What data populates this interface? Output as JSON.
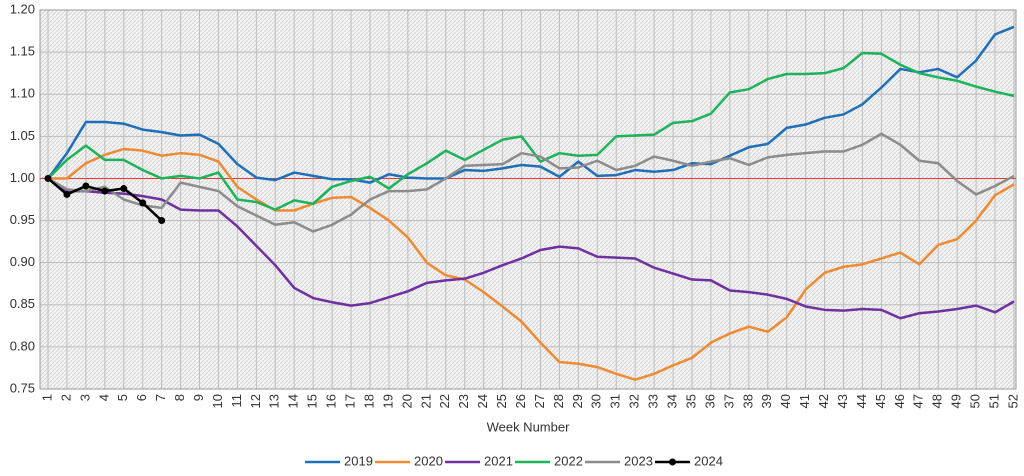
{
  "chart_data": {
    "type": "line",
    "x_label": "Week Number",
    "categories": [
      1,
      2,
      3,
      4,
      5,
      6,
      7,
      8,
      9,
      10,
      11,
      12,
      13,
      14,
      15,
      16,
      17,
      18,
      19,
      20,
      21,
      22,
      23,
      24,
      25,
      26,
      27,
      28,
      29,
      30,
      31,
      32,
      33,
      34,
      35,
      36,
      37,
      38,
      39,
      40,
      41,
      42,
      43,
      44,
      45,
      46,
      47,
      48,
      49,
      50,
      51,
      52
    ],
    "ylim": [
      0.75,
      1.2
    ],
    "yticks": [
      {
        "value": 0.75,
        "label": "0.75"
      },
      {
        "value": 0.8,
        "label": "0.80"
      },
      {
        "value": 0.85,
        "label": "0.85"
      },
      {
        "value": 0.9,
        "label": "0.90"
      },
      {
        "value": 0.95,
        "label": "0.95"
      },
      {
        "value": 1.0,
        "label": "1.00"
      },
      {
        "value": 1.05,
        "label": "1.05"
      },
      {
        "value": 1.1,
        "label": "1.10"
      },
      {
        "value": 1.15,
        "label": "1.15"
      },
      {
        "value": 1.2,
        "label": "1.20"
      }
    ],
    "grid": true,
    "reference_line": {
      "value": 1.0,
      "color": "#e8382f"
    },
    "legend": "bottom",
    "series": [
      {
        "name": "2019",
        "color": "#1f6fb8",
        "values": [
          1.0,
          1.03,
          1.067,
          1.067,
          1.065,
          1.058,
          1.055,
          1.051,
          1.052,
          1.041,
          1.017,
          1.001,
          0.998,
          1.007,
          1.003,
          0.999,
          0.999,
          0.995,
          1.005,
          1.001,
          1.0,
          1.0,
          1.01,
          1.009,
          1.012,
          1.016,
          1.014,
          1.002,
          1.02,
          1.003,
          1.004,
          1.01,
          1.008,
          1.01,
          1.018,
          1.017,
          1.027,
          1.037,
          1.041,
          1.06,
          1.064,
          1.072,
          1.076,
          1.088,
          1.108,
          1.13,
          1.126,
          1.13,
          1.12,
          1.14,
          1.171,
          1.18
        ]
      },
      {
        "name": "2020",
        "color": "#ee8a32",
        "values": [
          1.0,
          1.0,
          1.018,
          1.028,
          1.035,
          1.033,
          1.027,
          1.03,
          1.028,
          1.02,
          0.99,
          0.975,
          0.962,
          0.962,
          0.97,
          0.977,
          0.978,
          0.965,
          0.95,
          0.93,
          0.9,
          0.885,
          0.88,
          0.865,
          0.848,
          0.83,
          0.805,
          0.782,
          0.78,
          0.776,
          0.768,
          0.761,
          0.768,
          0.778,
          0.787,
          0.805,
          0.816,
          0.824,
          0.818,
          0.835,
          0.868,
          0.888,
          0.895,
          0.898,
          0.905,
          0.912,
          0.898,
          0.921,
          0.928,
          0.95,
          0.98,
          0.993
        ]
      },
      {
        "name": "2021",
        "color": "#7030a0",
        "values": [
          1.0,
          0.985,
          0.985,
          0.983,
          0.982,
          0.979,
          0.975,
          0.963,
          0.962,
          0.962,
          0.943,
          0.92,
          0.897,
          0.87,
          0.858,
          0.853,
          0.849,
          0.852,
          0.859,
          0.866,
          0.876,
          0.879,
          0.881,
          0.888,
          0.897,
          0.905,
          0.915,
          0.919,
          0.917,
          0.907,
          0.906,
          0.905,
          0.894,
          0.887,
          0.88,
          0.879,
          0.867,
          0.865,
          0.862,
          0.857,
          0.848,
          0.844,
          0.843,
          0.845,
          0.844,
          0.834,
          0.84,
          0.842,
          0.845,
          0.849,
          0.841,
          0.854
        ]
      },
      {
        "name": "2022",
        "color": "#1db35a",
        "values": [
          1.0,
          1.022,
          1.039,
          1.022,
          1.022,
          1.01,
          1.0,
          1.003,
          1.0,
          1.007,
          0.975,
          0.972,
          0.963,
          0.974,
          0.97,
          0.99,
          0.997,
          1.002,
          0.988,
          1.005,
          1.018,
          1.033,
          1.022,
          1.034,
          1.046,
          1.05,
          1.02,
          1.03,
          1.027,
          1.028,
          1.05,
          1.051,
          1.052,
          1.066,
          1.068,
          1.077,
          1.102,
          1.106,
          1.118,
          1.124,
          1.124,
          1.125,
          1.131,
          1.149,
          1.148,
          1.135,
          1.125,
          1.12,
          1.116,
          1.109,
          1.103,
          1.098
        ]
      },
      {
        "name": "2023",
        "color": "#8c8c8c",
        "values": [
          1.0,
          0.987,
          0.985,
          0.99,
          0.975,
          0.968,
          0.965,
          0.995,
          0.99,
          0.985,
          0.967,
          0.956,
          0.945,
          0.948,
          0.937,
          0.945,
          0.957,
          0.975,
          0.985,
          0.985,
          0.987,
          1.0,
          1.015,
          1.016,
          1.017,
          1.03,
          1.026,
          1.012,
          1.013,
          1.021,
          1.01,
          1.015,
          1.026,
          1.021,
          1.015,
          1.02,
          1.024,
          1.016,
          1.025,
          1.028,
          1.03,
          1.032,
          1.032,
          1.04,
          1.053,
          1.04,
          1.021,
          1.018,
          0.997,
          0.981,
          0.991,
          1.003
        ]
      },
      {
        "name": "2024",
        "color": "#000000",
        "markers": true,
        "values": [
          1.0,
          0.981,
          0.991,
          0.985,
          0.988,
          0.971,
          0.95,
          null,
          null,
          null,
          null,
          null,
          null,
          null,
          null,
          null,
          null,
          null,
          null,
          null,
          null,
          null,
          null,
          null,
          null,
          null,
          null,
          null,
          null,
          null,
          null,
          null,
          null,
          null,
          null,
          null,
          null,
          null,
          null,
          null,
          null,
          null,
          null,
          null,
          null,
          null,
          null,
          null,
          null,
          null,
          null,
          null
        ]
      }
    ]
  }
}
